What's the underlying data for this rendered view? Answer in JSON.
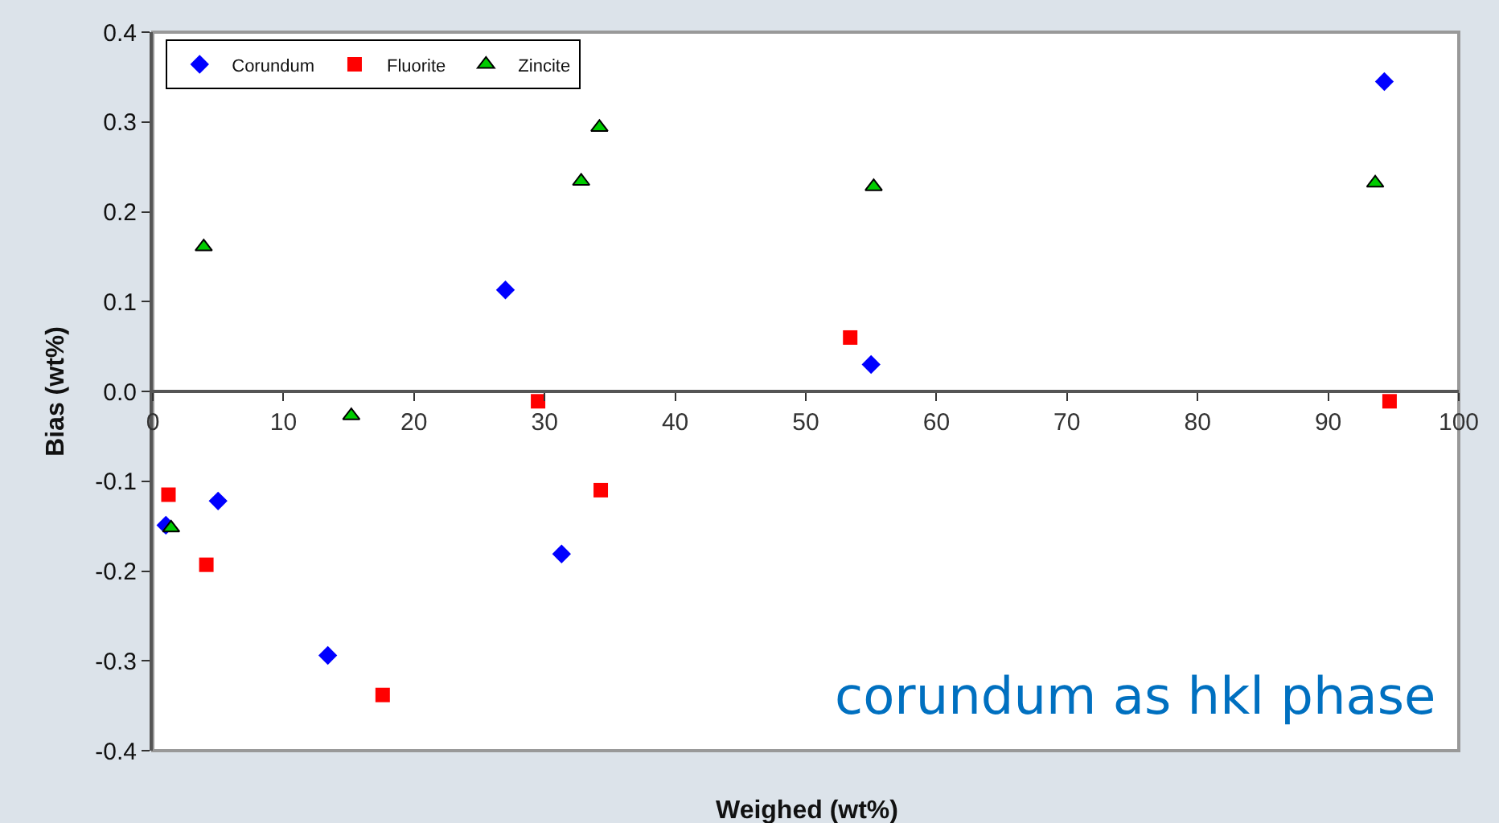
{
  "chart_data": {
    "type": "scatter",
    "xlabel": "Weighed (wt%)",
    "ylabel": "Bias (wt%)",
    "xlim": [
      0,
      100
    ],
    "xticks": [
      0,
      10,
      20,
      30,
      40,
      50,
      60,
      70,
      80,
      90,
      100
    ],
    "ylim": [
      -0.4,
      0.4
    ],
    "yticks": [
      {
        "value": -0.4,
        "label": "-0.4"
      },
      {
        "value": -0.3,
        "label": "-0.3"
      },
      {
        "value": -0.2,
        "label": "-0.2"
      },
      {
        "value": -0.1,
        "label": "-0.1"
      },
      {
        "value": 0,
        "label": "0.0"
      },
      {
        "value": 0.1,
        "label": "0.1"
      },
      {
        "value": 0.2,
        "label": "0.2"
      },
      {
        "value": 0.3,
        "label": "0.3"
      },
      {
        "value": 0.4,
        "label": "0.4"
      }
    ],
    "grid": false,
    "legend": "top left",
    "annotations": [
      "corundum as hkl phase"
    ],
    "series": [
      {
        "name": "Corundum",
        "color": "#0000ff",
        "marker": "diamond",
        "x": [
          1.0,
          5.0,
          13.4,
          27.0,
          31.3,
          55.0,
          94.3
        ],
        "values": [
          -0.149,
          -0.122,
          -0.294,
          0.113,
          -0.181,
          0.03,
          0.345
        ]
      },
      {
        "name": "Fluorite",
        "color": "#ff0000",
        "marker": "square",
        "x": [
          1.2,
          4.1,
          17.6,
          29.5,
          34.3,
          53.4,
          94.7
        ],
        "values": [
          -0.115,
          -0.193,
          -0.338,
          -0.011,
          -0.11,
          0.06,
          -0.011
        ]
      },
      {
        "name": "Zincite",
        "color": "#00cc00",
        "marker": "triangle",
        "x": [
          1.4,
          3.9,
          15.2,
          32.8,
          34.2,
          55.2,
          93.6
        ],
        "values": [
          -0.152,
          0.161,
          -0.027,
          0.234,
          0.294,
          0.228,
          0.232
        ]
      }
    ]
  }
}
